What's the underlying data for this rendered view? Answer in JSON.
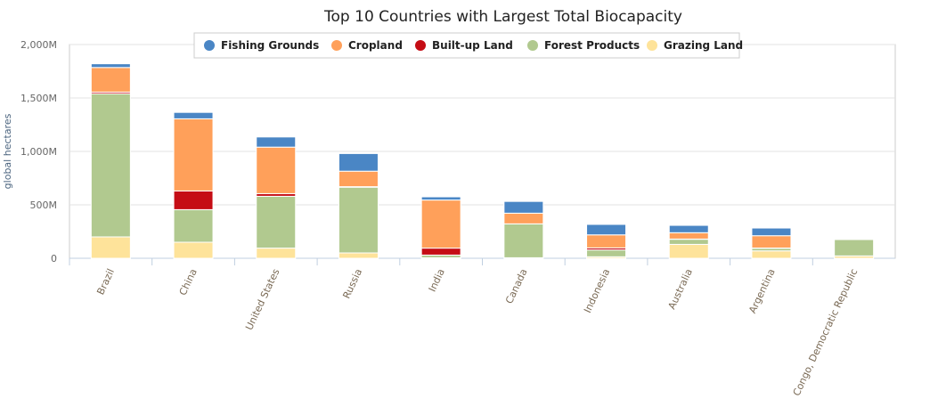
{
  "chart_data": {
    "type": "bar",
    "stacked": true,
    "title": "Top 10 Countries with Largest Total Biocapacity",
    "xlabel": "",
    "ylabel": "global hectares",
    "ylim": [
      0,
      2000
    ],
    "yticks": [
      "0",
      "500M",
      "1,000M",
      "1,500M",
      "2,000M"
    ],
    "ytick_values": [
      0,
      500,
      1000,
      1500,
      2000
    ],
    "grid": true,
    "legend": "top",
    "categories": [
      "Brazil",
      "China",
      "United States",
      "Russia",
      "India",
      "Canada",
      "Indonesia",
      "Australia",
      "Argentina",
      "Congo, Democratic Republic"
    ],
    "series": [
      {
        "name": "Fishing Grounds",
        "color": "#4a86c5",
        "values": [
          35,
          60,
          95,
          165,
          30,
          110,
          98,
          69,
          72,
          0
        ]
      },
      {
        "name": "Cropland",
        "color": "#ffa05a",
        "values": [
          230,
          675,
          435,
          145,
          450,
          100,
          122,
          59,
          115,
          0
        ]
      },
      {
        "name": "Built-up Land",
        "color": "#c50d15",
        "values": [
          15,
          175,
          25,
          5,
          65,
          0,
          19,
          2,
          2,
          0
        ]
      },
      {
        "name": "Forest Products",
        "color": "#b1c98f",
        "values": [
          1340,
          305,
          485,
          615,
          25,
          317,
          64,
          48,
          25,
          153
        ]
      },
      {
        "name": "Grazing Land",
        "color": "#fee39a",
        "values": [
          200,
          150,
          95,
          50,
          5,
          5,
          14,
          130,
          69,
          22
        ]
      }
    ]
  }
}
